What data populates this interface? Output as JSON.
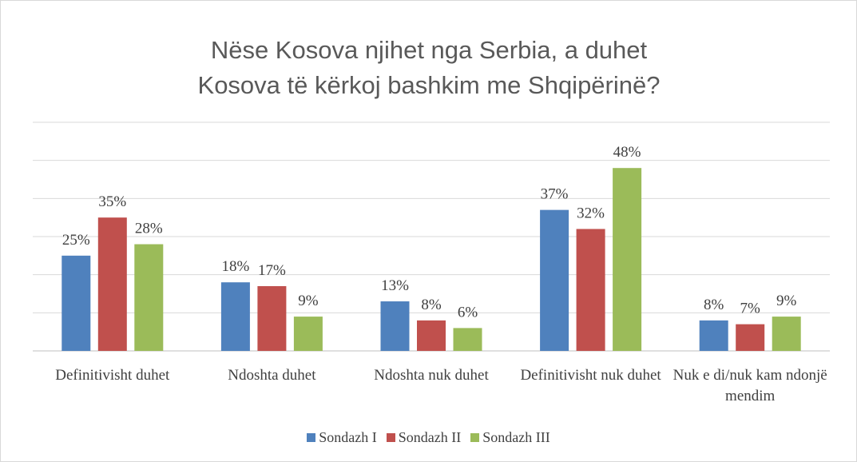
{
  "chart_data": {
    "type": "bar",
    "title": "Nëse Kosova njihet nga Serbia, a duhet Kosova të kërkoj bashkim me Shqipërinë?",
    "categories": [
      "Definitivisht duhet",
      "Ndoshta duhet",
      "Ndoshta nuk duhet",
      "Definitivisht nuk duhet",
      "Nuk e di/nuk kam ndonjë mendim"
    ],
    "series": [
      {
        "name": "Sondazh I",
        "color": "#4f81bd",
        "values": [
          25,
          18,
          13,
          37,
          8
        ],
        "value_labels": [
          "25%",
          "18%",
          "13%",
          "37%",
          "8%"
        ]
      },
      {
        "name": "Sondazh II",
        "color": "#c0504d",
        "values": [
          35,
          17,
          8,
          32,
          7
        ],
        "value_labels": [
          "35%",
          "17%",
          "8%",
          "32%",
          "7%"
        ]
      },
      {
        "name": "Sondazh III",
        "color": "#9bbb59",
        "values": [
          28,
          9,
          6,
          48,
          9
        ],
        "value_labels": [
          "28%",
          "9%",
          "6%",
          "48%",
          "9%"
        ]
      }
    ],
    "ylim": [
      0,
      60
    ],
    "yticks": [
      0,
      10,
      20,
      30,
      40,
      50,
      60
    ],
    "grid": true,
    "legend": "bottom"
  }
}
